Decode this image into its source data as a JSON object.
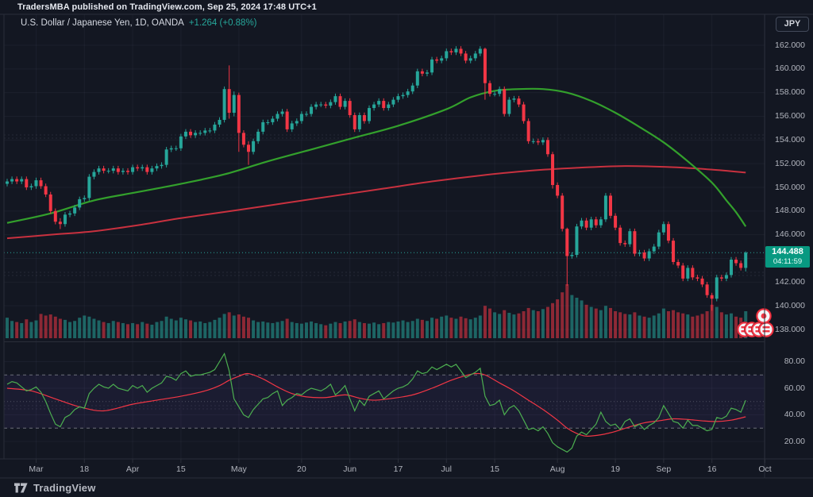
{
  "header": {
    "attribution": "TradersMBA published on TradingView.com, Sep 25, 2024 17:48 UTC+1"
  },
  "legend": {
    "symbol_title": "U.S. Dollar / Japanese Yen, 1D, OANDA",
    "change": "+1.264 (+0.88%)"
  },
  "axis": {
    "currency_badge": "JPY"
  },
  "current_price": {
    "value": "144.488",
    "countdown": "04:11:59"
  },
  "footer": {
    "brand": "TradingView",
    "logo_icon": "tradingview-logo"
  },
  "colors": {
    "background": "#131722",
    "border": "#2a2e39",
    "grid": "rgba(170,178,196,0.06)",
    "axis_text": "#b2b5be",
    "candle_up": "#26a69a",
    "candle_down": "#f23645",
    "volume_up": "rgba(38,166,154,0.55)",
    "volume_down": "rgba(242,54,69,0.55)",
    "ma_green": "#33a02c",
    "ma_red": "#c8313f",
    "rsi_line": "#4caf50",
    "rsi_ma_line": "#f23645",
    "rsi_band_fill": "rgba(135,105,255,0.07)",
    "rsi_band_line": "rgba(178,181,190,0.55)",
    "price_line": "#26a69a",
    "price_badge_bg": "#089981",
    "marker_red": "#f23645",
    "marker_white": "#f4f6f9"
  },
  "chart_data": {
    "type": "candlestick",
    "title": "U.S. Dollar / Japanese Yen, 1D, OANDA",
    "panes": [
      "price+volume",
      "rsi"
    ],
    "price_axis_ticks": [
      {
        "label": "162.000",
        "value": 162
      },
      {
        "label": "160.000",
        "value": 160
      },
      {
        "label": "158.000",
        "value": 158
      },
      {
        "label": "156.000",
        "value": 156
      },
      {
        "label": "154.000",
        "value": 154
      },
      {
        "label": "152.000",
        "value": 152
      },
      {
        "label": "150.000",
        "value": 150
      },
      {
        "label": "148.000",
        "value": 148
      },
      {
        "label": "146.000",
        "value": 146
      },
      {
        "label": "142.000",
        "value": 142
      },
      {
        "label": "140.000",
        "value": 140
      },
      {
        "label": "138.000",
        "value": 138
      }
    ],
    "price_grid_values": [
      162,
      160,
      158,
      156,
      154,
      152,
      150,
      148,
      146,
      144,
      142,
      140,
      138
    ],
    "rsi_axis_ticks": [
      {
        "label": "80.00",
        "value": 80
      },
      {
        "label": "60.00",
        "value": 60
      },
      {
        "label": "40.00",
        "value": 40
      },
      {
        "label": "20.00",
        "value": 20
      }
    ],
    "time_ticks": [
      {
        "label": "Mar",
        "i": 6
      },
      {
        "label": "18",
        "i": 16
      },
      {
        "label": "Apr",
        "i": 26
      },
      {
        "label": "15",
        "i": 36
      },
      {
        "label": "May",
        "i": 48
      },
      {
        "label": "20",
        "i": 61
      },
      {
        "label": "Jun",
        "i": 71
      },
      {
        "label": "17",
        "i": 81
      },
      {
        "label": "Jul",
        "i": 91
      },
      {
        "label": "15",
        "i": 101
      },
      {
        "label": "Aug",
        "i": 114
      },
      {
        "label": "19",
        "i": 126
      },
      {
        "label": "Sep",
        "i": 136
      },
      {
        "label": "16",
        "i": 146
      },
      {
        "label": "Oct",
        "i": 157
      }
    ],
    "current_price": 144.488,
    "closes": [
      150.5,
      150.7,
      150.5,
      150.7,
      150.0,
      150.1,
      150.6,
      150.1,
      149.4,
      148.0,
      147.1,
      146.9,
      147.7,
      147.8,
      148.3,
      149.0,
      149.1,
      150.9,
      151.3,
      151.6,
      151.4,
      151.4,
      151.6,
      151.3,
      151.4,
      151.3,
      151.7,
      151.6,
      151.7,
      151.3,
      151.6,
      151.8,
      151.9,
      153.2,
      153.3,
      153.3,
      154.3,
      154.7,
      154.4,
      154.6,
      154.6,
      154.8,
      154.8,
      155.3,
      155.7,
      158.3,
      156.3,
      157.8,
      154.6,
      153.6,
      153.0,
      153.9,
      154.7,
      155.5,
      155.5,
      155.8,
      156.2,
      156.4,
      154.9,
      155.4,
      155.6,
      156.2,
      156.2,
      156.8,
      157.0,
      157.0,
      156.9,
      157.2,
      157.7,
      156.8,
      157.3,
      156.1,
      154.9,
      156.1,
      155.6,
      156.7,
      157.0,
      157.3,
      156.7,
      157.0,
      157.4,
      157.7,
      157.8,
      158.1,
      158.6,
      159.8,
      159.6,
      159.7,
      160.8,
      160.7,
      160.9,
      161.5,
      161.4,
      161.7,
      161.3,
      160.7,
      160.9,
      161.3,
      161.7,
      158.8,
      157.9,
      157.9,
      158.3,
      156.2,
      157.4,
      157.5,
      157.0,
      155.6,
      153.9,
      153.9,
      153.8,
      154.0,
      152.8,
      150.2,
      149.3,
      146.5,
      144.2,
      144.3,
      146.7,
      147.2,
      146.6,
      147.3,
      146.8,
      147.3,
      149.3,
      147.6,
      146.6,
      145.3,
      145.2,
      146.3,
      144.4,
      144.5,
      144.0,
      144.6,
      145.0,
      146.2,
      146.9,
      145.5,
      143.7,
      143.4,
      142.3,
      143.2,
      142.4,
      142.3,
      141.8,
      140.9,
      140.6,
      142.4,
      142.3,
      142.6,
      143.9,
      143.6,
      143.2,
      144.49
    ],
    "ohlc_overrides": {
      "11": [
        147.1,
        147.4,
        146.48,
        146.9
      ],
      "46": [
        158.3,
        160.3,
        155.8,
        156.3
      ],
      "47": [
        156.3,
        158.1,
        156.0,
        157.8
      ],
      "48": [
        157.8,
        158.0,
        153.0,
        154.6
      ],
      "50": [
        153.6,
        153.9,
        151.9,
        153.0
      ],
      "99": [
        161.7,
        161.8,
        157.4,
        158.8
      ],
      "113": [
        152.8,
        153.0,
        149.9,
        150.2
      ],
      "116": [
        146.5,
        146.6,
        141.7,
        144.2
      ],
      "146": [
        140.9,
        141.1,
        139.58,
        140.6
      ],
      "153": [
        143.2,
        144.6,
        142.9,
        144.49
      ]
    },
    "default_wick": 0.22,
    "volume_relative": [
      38,
      32,
      30,
      28,
      35,
      30,
      33,
      45,
      42,
      44,
      40,
      36,
      34,
      30,
      32,
      38,
      42,
      40,
      36,
      33,
      30,
      28,
      32,
      30,
      28,
      26,
      28,
      26,
      30,
      27,
      25,
      30,
      32,
      40,
      36,
      33,
      38,
      35,
      33,
      30,
      31,
      28,
      30,
      34,
      38,
      45,
      48,
      42,
      44,
      40,
      38,
      33,
      30,
      31,
      29,
      28,
      30,
      32,
      36,
      30,
      28,
      27,
      29,
      31,
      28,
      26,
      24,
      27,
      30,
      28,
      31,
      32,
      35,
      30,
      28,
      27,
      29,
      26,
      28,
      30,
      29,
      31,
      33,
      30,
      32,
      36,
      34,
      32,
      38,
      36,
      40,
      42,
      38,
      36,
      40,
      37,
      35,
      38,
      42,
      60,
      55,
      48,
      45,
      52,
      47,
      44,
      46,
      50,
      56,
      52,
      50,
      54,
      58,
      65,
      72,
      85,
      100,
      80,
      75,
      70,
      62,
      58,
      55,
      52,
      60,
      56,
      50,
      48,
      45,
      44,
      48,
      42,
      40,
      38,
      42,
      46,
      55,
      50,
      52,
      48,
      46,
      44,
      40,
      42,
      45,
      50,
      62,
      58,
      48,
      44,
      46,
      40,
      38,
      50
    ],
    "ma_green_keypoints": [
      [
        0,
        147.0
      ],
      [
        9,
        147.8
      ],
      [
        18,
        148.9
      ],
      [
        27,
        149.6
      ],
      [
        36,
        150.3
      ],
      [
        45,
        151.1
      ],
      [
        54,
        152.2
      ],
      [
        63,
        153.2
      ],
      [
        72,
        154.2
      ],
      [
        81,
        155.2
      ],
      [
        91,
        156.6
      ],
      [
        96,
        157.6
      ],
      [
        101,
        158.15
      ],
      [
        106,
        158.3
      ],
      [
        111,
        158.3
      ],
      [
        116,
        158.0
      ],
      [
        121,
        157.3
      ],
      [
        126,
        156.3
      ],
      [
        131,
        155.1
      ],
      [
        136,
        153.8
      ],
      [
        141,
        152.2
      ],
      [
        146,
        150.4
      ],
      [
        149,
        148.9
      ],
      [
        151,
        147.9
      ],
      [
        153,
        146.7
      ]
    ],
    "ma_red_keypoints": [
      [
        0,
        145.7
      ],
      [
        9,
        146.0
      ],
      [
        18,
        146.3
      ],
      [
        27,
        146.8
      ],
      [
        36,
        147.4
      ],
      [
        48,
        148.1
      ],
      [
        58,
        148.7
      ],
      [
        68,
        149.3
      ],
      [
        78,
        149.9
      ],
      [
        88,
        150.5
      ],
      [
        98,
        151.0
      ],
      [
        108,
        151.4
      ],
      [
        118,
        151.65
      ],
      [
        128,
        151.8
      ],
      [
        138,
        151.7
      ],
      [
        146,
        151.5
      ],
      [
        153,
        151.25
      ]
    ],
    "rsi": [
      63,
      65,
      64,
      61,
      58,
      59,
      61,
      57,
      50,
      41,
      33,
      31,
      38,
      40,
      44,
      46,
      45,
      56,
      60,
      63,
      61,
      60,
      63,
      60,
      59,
      58,
      62,
      60,
      62,
      57,
      60,
      62,
      64,
      69,
      68,
      66,
      71,
      73,
      69,
      70,
      70,
      71,
      72,
      74,
      80,
      86,
      73,
      52,
      46,
      40,
      38,
      44,
      48,
      52,
      53,
      56,
      58,
      47,
      51,
      53,
      56,
      55,
      58,
      60,
      59,
      58,
      60,
      63,
      55,
      58,
      62,
      52,
      43,
      51,
      47,
      54,
      56,
      58,
      52,
      55,
      58,
      60,
      61,
      63,
      67,
      73,
      71,
      72,
      76,
      74,
      76,
      78,
      76,
      78,
      73,
      68,
      70,
      72,
      75,
      54,
      47,
      48,
      51,
      40,
      45,
      47,
      43,
      36,
      29,
      30,
      28,
      31,
      26,
      19,
      16,
      14,
      12,
      15,
      24,
      27,
      25,
      29,
      33,
      42,
      35,
      32,
      33,
      29,
      35,
      37,
      31,
      33,
      29,
      32,
      34,
      38,
      47,
      41,
      35,
      34,
      30,
      36,
      32,
      32,
      30,
      28,
      29,
      38,
      37,
      39,
      45,
      44,
      42,
      51
    ],
    "rsi_ma_keypoints": [
      [
        0,
        60
      ],
      [
        5,
        58
      ],
      [
        10,
        52
      ],
      [
        15,
        46
      ],
      [
        20,
        43
      ],
      [
        26,
        48
      ],
      [
        31,
        51
      ],
      [
        36,
        54
      ],
      [
        41,
        58
      ],
      [
        44,
        62
      ],
      [
        46,
        66
      ],
      [
        48,
        69
      ],
      [
        50,
        71
      ],
      [
        53,
        67
      ],
      [
        56,
        61
      ],
      [
        59,
        56
      ],
      [
        62,
        53.5
      ],
      [
        66,
        53
      ],
      [
        70,
        55
      ],
      [
        73,
        52.5
      ],
      [
        76,
        51
      ],
      [
        80,
        52.5
      ],
      [
        84,
        55
      ],
      [
        88,
        60
      ],
      [
        92,
        66
      ],
      [
        95,
        69.5
      ],
      [
        97,
        71
      ],
      [
        99,
        70
      ],
      [
        102,
        64
      ],
      [
        105,
        58
      ],
      [
        108,
        51
      ],
      [
        111,
        44
      ],
      [
        114,
        36
      ],
      [
        116,
        30
      ],
      [
        118,
        26
      ],
      [
        120,
        24
      ],
      [
        123,
        25
      ],
      [
        126,
        27.5
      ],
      [
        129,
        31
      ],
      [
        132,
        34
      ],
      [
        135,
        35.5
      ],
      [
        138,
        37
      ],
      [
        141,
        36.5
      ],
      [
        144,
        35.5
      ],
      [
        147,
        35
      ],
      [
        150,
        36
      ],
      [
        153,
        38.5
      ]
    ],
    "rsi_bands": {
      "upper": 70,
      "middle": 50,
      "lower": 30
    },
    "markers": {
      "dot_circle_icon": "red-dot-circle",
      "striped_row_icon": "red-striped-circles",
      "row_count": 4
    }
  }
}
